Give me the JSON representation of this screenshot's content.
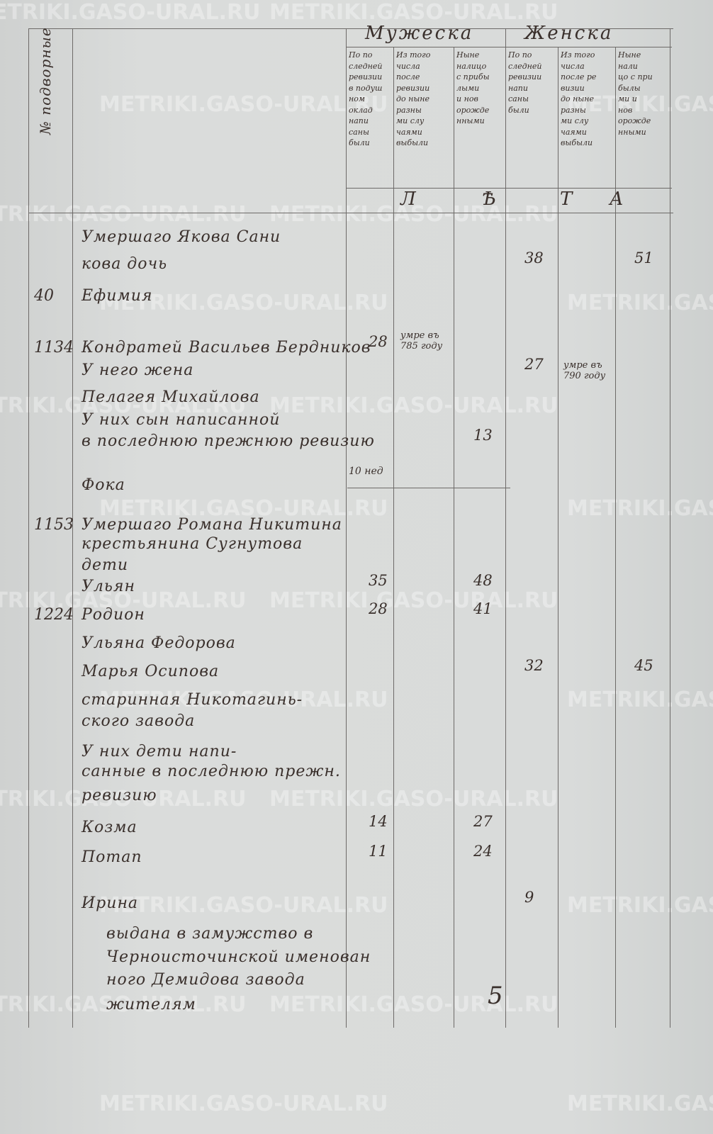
{
  "watermark": "METRIKI.GASO-URAL.RU",
  "header": {
    "left_col": "№ подворные",
    "male": "Мужеска",
    "female": "Женска",
    "subcols": [
      "По по\nследней\nревизии\nв подуш\nном\nоклад\nнапи\nсаны\nбыли",
      "Из того\nчисла\nпосле\nревизии\nдо ныне\nразны\nми слу\nчаями\nвыбыли",
      "Ныне\nналицо\nс прибы\nлыми\nи нов\nорожде\nнными",
      "По по\nследней\nревизии\nнапи\nсаны\nбыли",
      "Из того\nчисла\nпосле ре\nвизии\nдо ныне\nразны\nми слу\nчаями\nвыбыли",
      "Ныне\nнали\nцо с при\nбылы\nми и\nнов\nорожде\nнными"
    ],
    "leta": [
      "Л",
      "Ѣ",
      "Т",
      "А"
    ]
  },
  "rows": [
    {
      "no": "",
      "name": "Умершаго Якова Сани",
      "c": [
        "",
        "",
        "",
        "",
        "",
        ""
      ]
    },
    {
      "no": "",
      "name": "кова дочь",
      "c": [
        "",
        "",
        "",
        "38",
        "",
        "51"
      ]
    },
    {
      "no": "40",
      "name": "Ефимия",
      "c": [
        "",
        "",
        "",
        "",
        "",
        ""
      ]
    },
    {
      "no": "1134",
      "name": "Кондратей Васильев Бердников",
      "c": [
        "28",
        "умре въ\n785 году",
        "",
        "",
        "",
        ""
      ]
    },
    {
      "no": "",
      "name": "У него жена",
      "c": [
        "",
        "",
        "",
        "27",
        "умре въ\n790 году",
        ""
      ]
    },
    {
      "no": "",
      "name": "Пелагея Михайлова",
      "c": [
        "",
        "",
        "",
        "",
        "",
        ""
      ]
    },
    {
      "no": "",
      "name": "У них сын написанной",
      "c": [
        "",
        "",
        "",
        "",
        "",
        ""
      ]
    },
    {
      "no": "",
      "name": "в последнюю прежнюю ревизию",
      "c": [
        "10 нед",
        "",
        "13",
        "",
        "",
        ""
      ]
    },
    {
      "no": "",
      "name": "Фока",
      "c": [
        "",
        "",
        "",
        "",
        "",
        ""
      ]
    },
    {
      "no": "1153",
      "name": "Умершаго Романа Никитина",
      "c": [
        "",
        "",
        "",
        "",
        "",
        ""
      ]
    },
    {
      "no": "",
      "name": "крестьянина Сугнутова",
      "c": [
        "",
        "",
        "",
        "",
        "",
        ""
      ]
    },
    {
      "no": "",
      "name": "дети",
      "c": [
        "",
        "",
        "",
        "",
        "",
        ""
      ]
    },
    {
      "no": "",
      "name": "Ульян",
      "c": [
        "35",
        "",
        "48",
        "",
        "",
        ""
      ]
    },
    {
      "no": "1224",
      "name": "Родион",
      "c": [
        "28",
        "",
        "41",
        "",
        "",
        ""
      ]
    },
    {
      "no": "",
      "name": "Ульяна Федорова",
      "c": [
        "",
        "",
        "",
        "",
        "",
        ""
      ]
    },
    {
      "no": "",
      "name": "Марья Осипова",
      "c": [
        "",
        "",
        "",
        "32",
        "",
        "45"
      ]
    },
    {
      "no": "",
      "name": "старинная Никотагинь-",
      "c": [
        "",
        "",
        "",
        "",
        "",
        ""
      ]
    },
    {
      "no": "",
      "name": "ского завода",
      "c": [
        "",
        "",
        "",
        "",
        "",
        ""
      ]
    },
    {
      "no": "",
      "name": "У них дети напи-",
      "c": [
        "",
        "",
        "",
        "",
        "",
        ""
      ]
    },
    {
      "no": "",
      "name": "санные в последнюю прежн.",
      "c": [
        "",
        "",
        "",
        "",
        "",
        ""
      ]
    },
    {
      "no": "",
      "name": "ревизию",
      "c": [
        "",
        "",
        "",
        "",
        "",
        ""
      ]
    },
    {
      "no": "",
      "name": "Козма",
      "c": [
        "14",
        "",
        "27",
        "",
        "",
        ""
      ]
    },
    {
      "no": "",
      "name": "Потап",
      "c": [
        "11",
        "",
        "24",
        "",
        "",
        ""
      ]
    },
    {
      "no": "",
      "name": "Ирина",
      "c": [
        "",
        "",
        "",
        "9",
        "",
        ""
      ]
    },
    {
      "no": "",
      "name": "выдана в замужство в",
      "c": [
        "",
        "",
        "",
        "",
        "",
        ""
      ]
    },
    {
      "no": "",
      "name": "Черноисточинской именован",
      "c": [
        "",
        "",
        "",
        "",
        "",
        ""
      ]
    },
    {
      "no": "",
      "name": "ного Демидова завода",
      "c": [
        "",
        "",
        "",
        "",
        "",
        ""
      ]
    },
    {
      "no": "",
      "name": "жителям",
      "c": [
        "",
        "",
        "",
        "",
        "",
        ""
      ]
    }
  ],
  "page_number": "5"
}
